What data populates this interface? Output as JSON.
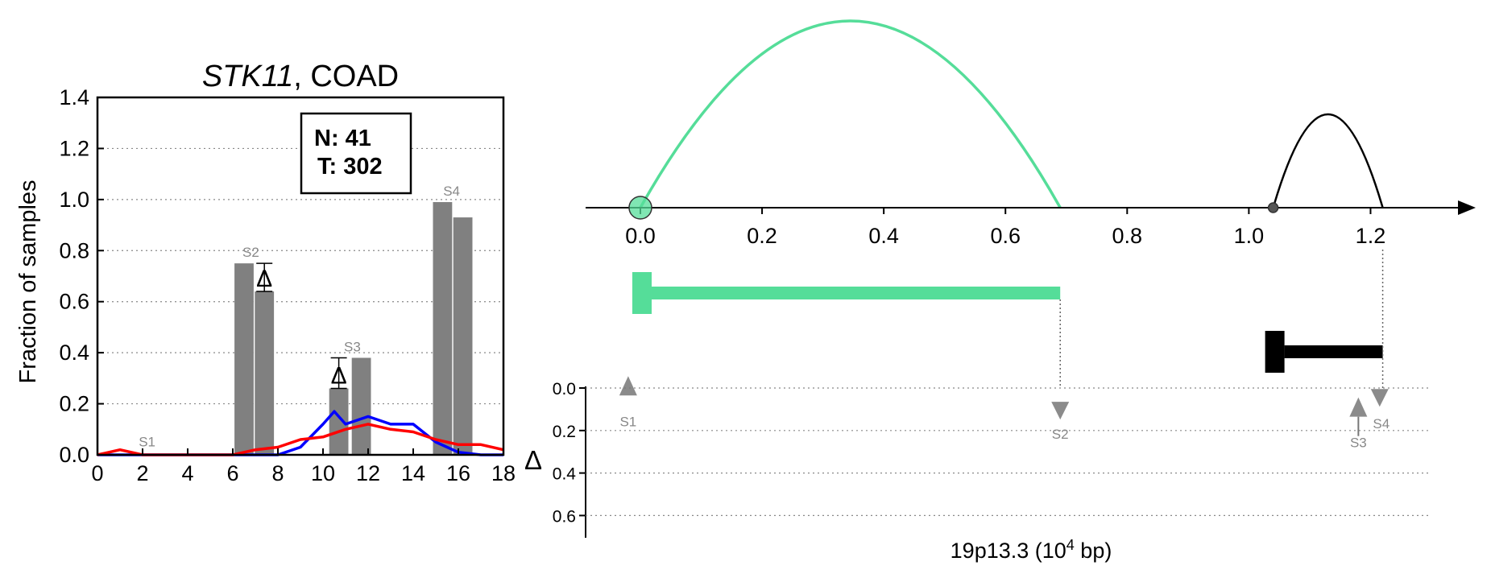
{
  "chart_data": [
    {
      "type": "bar",
      "title_gene": "STK11",
      "title_rest": ", COAD",
      "xlabel": "",
      "ylabel": "Fraction of samples",
      "xlim": [
        0,
        18
      ],
      "ylim": [
        0,
        1.4
      ],
      "x_ticks": [
        0,
        2,
        4,
        6,
        8,
        10,
        12,
        14,
        16,
        18
      ],
      "y_ticks": [
        0.0,
        0.2,
        0.4,
        0.6,
        0.8,
        1.0,
        1.2,
        1.4
      ],
      "grid": "y-dotted",
      "legend_box": {
        "line1": "N: 41",
        "line2": "T: 302",
        "placement": "top-right"
      },
      "bars": [
        {
          "site": "S2",
          "x": 6.5,
          "value": 0.75
        },
        {
          "site": "S2",
          "x": 7.4,
          "value": 0.64
        },
        {
          "site": "S3",
          "x": 10.7,
          "value": 0.26
        },
        {
          "site": "S3",
          "x": 11.7,
          "value": 0.38
        },
        {
          "site": "S4",
          "x": 15.3,
          "value": 0.99
        },
        {
          "site": "S4",
          "x": 16.2,
          "value": 0.93
        }
      ],
      "site_labels": [
        {
          "text": "S1",
          "x": 2.2,
          "y": 0.02
        },
        {
          "text": "S2",
          "x": 6.8,
          "value_top": 0.75
        },
        {
          "text": "S3",
          "x": 11.3,
          "value_top": 0.38
        },
        {
          "text": "S4",
          "x": 15.7,
          "value_top": 0.99
        }
      ],
      "delta_markers": [
        {
          "symbol": "Δ",
          "x": 7.4,
          "from": 0.64,
          "to": 0.75
        },
        {
          "symbol": "Δ",
          "x": 10.7,
          "from": 0.26,
          "to": 0.38
        }
      ],
      "series": [
        {
          "color": "#0000ff",
          "x": [
            0,
            1,
            2,
            3,
            4,
            5,
            6,
            7,
            8,
            9,
            10,
            10.5,
            11,
            12,
            13,
            14,
            15,
            16,
            17,
            18
          ],
          "y": [
            0,
            0,
            0,
            0,
            0,
            0,
            0,
            0,
            0,
            0.03,
            0.12,
            0.17,
            0.12,
            0.15,
            0.12,
            0.12,
            0.05,
            0.01,
            0,
            0
          ]
        },
        {
          "color": "#ff0000",
          "x": [
            0,
            1,
            2,
            3,
            4,
            5,
            6,
            7,
            8,
            9,
            10,
            11,
            12,
            13,
            14,
            15,
            16,
            17,
            18
          ],
          "y": [
            0,
            0.02,
            0,
            0,
            0,
            0,
            0,
            0.02,
            0.03,
            0.06,
            0.07,
            0.1,
            0.12,
            0.1,
            0.09,
            0.06,
            0.04,
            0.04,
            0.02
          ]
        }
      ]
    },
    {
      "type": "diagram",
      "xlabel_main": "19p13.3 (10",
      "xlabel_sup": "4",
      "xlabel_tail": " bp)",
      "delta_axis_label": "Δ",
      "genomic_ticks": [
        0.0,
        0.2,
        0.4,
        0.6,
        0.8,
        1.0,
        1.2
      ],
      "genomic_tick_labels": [
        "0.0",
        "0.2",
        "0.4",
        "0.6",
        "0.8",
        "1.0",
        "1.2"
      ],
      "genomic_xlim": [
        -0.09,
        1.3
      ],
      "delta_ticks": [
        0.0,
        0.2,
        0.4,
        0.6
      ],
      "delta_tick_labels": [
        "0.0",
        "0.2",
        "0.4",
        "0.6"
      ],
      "delta_ylim": [
        0,
        0.7
      ],
      "colors": {
        "green": "#55dd99",
        "black": "#000000",
        "marker": "#777777"
      },
      "arcs": [
        {
          "color": "#55dd99",
          "start": 0.0,
          "end": 0.69,
          "height": 1.0
        },
        {
          "color": "#000000",
          "start": 1.04,
          "end": 1.22,
          "height": 0.5
        }
      ],
      "origin_markers": [
        {
          "x": 0.0,
          "color": "#55dd99",
          "size": "large"
        },
        {
          "x": 1.04,
          "color": "#555555",
          "size": "small"
        }
      ],
      "segments": [
        {
          "color": "#55dd99",
          "start": 0.0,
          "end": 0.69,
          "row": 1
        },
        {
          "color": "#000000",
          "start": 1.04,
          "end": 1.22,
          "row": 2
        }
      ],
      "sites": [
        {
          "label": "S1",
          "x": -0.02,
          "delta": 0.02,
          "direction": "up"
        },
        {
          "label": "S2",
          "x": 0.69,
          "delta": 0.08,
          "direction": "down"
        },
        {
          "label": "S3",
          "x": 1.18,
          "delta": 0.12,
          "direction": "up"
        },
        {
          "label": "S4",
          "x": 1.215,
          "delta": 0.02,
          "direction": "down"
        }
      ]
    }
  ]
}
